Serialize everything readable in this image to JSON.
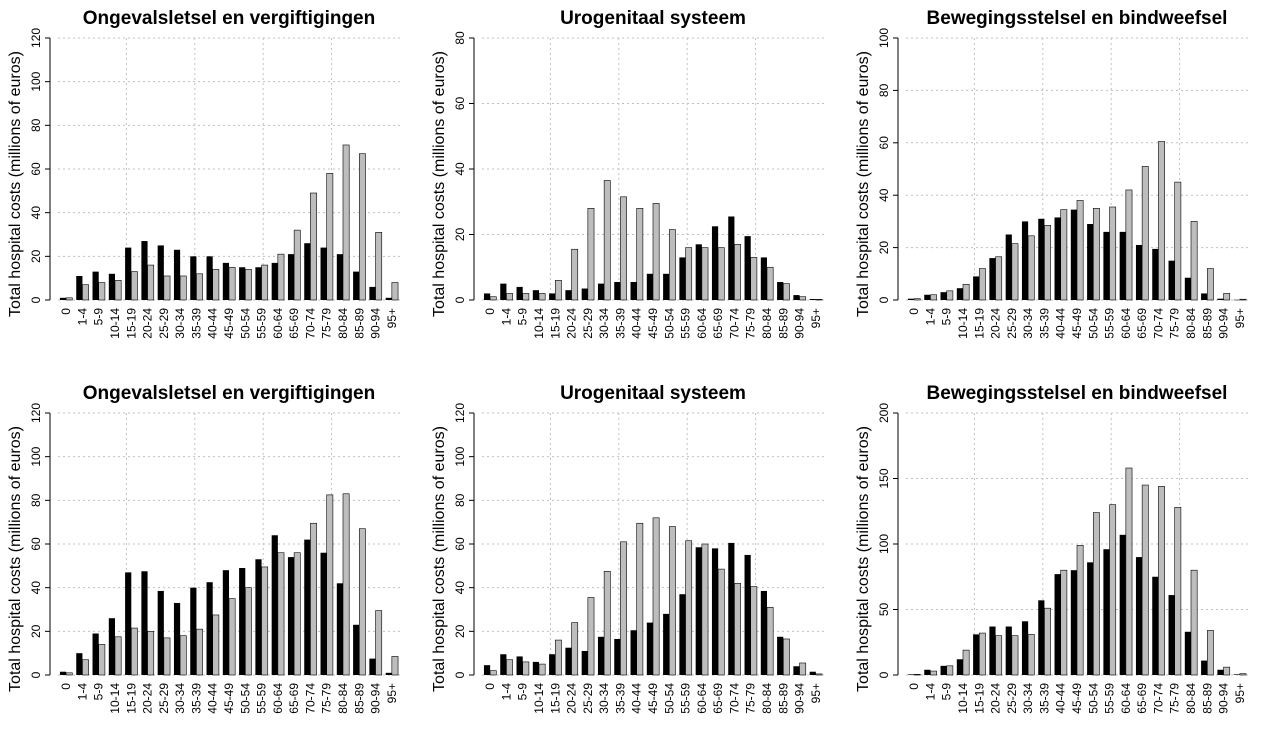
{
  "figure": {
    "ylabel": "Total hospital costs (millions of euros)",
    "series_colors": {
      "black": "#000000",
      "grey": "#bdbdbd"
    }
  },
  "chart_data": [
    {
      "type": "bar",
      "title": "Ongevalsletsel en vergiftigingen",
      "ylabel": "Total hospital costs (millions of euros)",
      "ylim": [
        0,
        120
      ],
      "yticks": [
        0,
        20,
        40,
        60,
        80,
        100,
        120
      ],
      "grid": true,
      "categories": [
        "0",
        "1-4",
        "5-9",
        "10-14",
        "15-19",
        "20-24",
        "25-29",
        "30-34",
        "35-39",
        "40-44",
        "45-49",
        "50-54",
        "55-59",
        "60-64",
        "65-69",
        "70-74",
        "75-79",
        "80-84",
        "85-89",
        "90-94",
        "95+"
      ],
      "series": [
        {
          "color": "#000000",
          "values": [
            1,
            11,
            13,
            12,
            24,
            27,
            25,
            23,
            20,
            20,
            17,
            15,
            15,
            17,
            21,
            26,
            24,
            21,
            13,
            6,
            1
          ]
        },
        {
          "color": "#bdbdbd",
          "values": [
            1,
            7,
            8,
            9,
            13,
            16,
            11,
            11,
            12,
            14,
            15,
            14,
            16,
            21,
            32,
            49,
            58,
            71,
            67,
            31,
            8
          ]
        }
      ]
    },
    {
      "type": "bar",
      "title": "Urogenitaal systeem",
      "ylabel": "Total hospital costs (millions of euros)",
      "ylim": [
        0,
        80
      ],
      "yticks": [
        0,
        20,
        40,
        60,
        80
      ],
      "grid": true,
      "categories": [
        "0",
        "1-4",
        "5-9",
        "10-14",
        "15-19",
        "20-24",
        "25-29",
        "30-34",
        "35-39",
        "40-44",
        "45-49",
        "50-54",
        "55-59",
        "60-64",
        "65-69",
        "70-74",
        "75-79",
        "80-84",
        "85-89",
        "90-94",
        "95+"
      ],
      "series": [
        {
          "color": "#000000",
          "values": [
            2,
            5,
            4,
            3,
            2,
            3,
            3.5,
            5,
            5.5,
            5.5,
            8,
            8,
            13,
            17,
            22.5,
            25.5,
            19.5,
            13,
            5.5,
            1.5,
            0.3
          ]
        },
        {
          "color": "#bdbdbd",
          "values": [
            1,
            2,
            2,
            2,
            6,
            15.5,
            28,
            36.5,
            31.5,
            28,
            29.5,
            21.5,
            16,
            16,
            16,
            17,
            13,
            10,
            5,
            1,
            0.2
          ]
        }
      ]
    },
    {
      "type": "bar",
      "title": "Bewegingsstelsel en bindweefsel",
      "ylabel": "Total hospital costs (millions of euros)",
      "ylim": [
        0,
        100
      ],
      "yticks": [
        0,
        20,
        40,
        60,
        80,
        100
      ],
      "grid": true,
      "categories": [
        "0",
        "1-4",
        "5-9",
        "10-14",
        "15-19",
        "20-24",
        "25-29",
        "30-34",
        "35-39",
        "40-44",
        "45-49",
        "50-54",
        "55-59",
        "60-64",
        "65-69",
        "70-74",
        "75-79",
        "80-84",
        "85-89",
        "90-94",
        "95+"
      ],
      "series": [
        {
          "color": "#000000",
          "values": [
            0.5,
            2,
            3,
            4.5,
            9,
            16,
            25,
            30,
            31,
            31.5,
            34.5,
            29,
            26,
            26,
            21,
            19.5,
            15,
            8.5,
            2.5,
            0.5,
            0.1
          ]
        },
        {
          "color": "#bdbdbd",
          "values": [
            0.5,
            2,
            3.5,
            6,
            12,
            16.5,
            21.5,
            24.5,
            28.5,
            34.5,
            38,
            35,
            35.5,
            42,
            51,
            60.5,
            45,
            30,
            12,
            2.5,
            0.3
          ]
        }
      ]
    },
    {
      "type": "bar",
      "title": "Ongevalsletsel en vergiftigingen",
      "ylabel": "Total hospital costs (millions of euros)",
      "ylim": [
        0,
        120
      ],
      "yticks": [
        0,
        20,
        40,
        60,
        80,
        100,
        120
      ],
      "grid": true,
      "categories": [
        "0",
        "1-4",
        "5-9",
        "10-14",
        "15-19",
        "20-24",
        "25-29",
        "30-34",
        "35-39",
        "40-44",
        "45-49",
        "50-54",
        "55-59",
        "60-64",
        "65-69",
        "70-74",
        "75-79",
        "80-84",
        "85-89",
        "90-94",
        "95+"
      ],
      "series": [
        {
          "color": "#000000",
          "values": [
            1.5,
            10,
            19,
            26,
            47,
            47.5,
            38.5,
            33,
            40,
            42.5,
            48,
            49,
            53,
            64,
            54,
            62,
            56,
            42,
            23,
            7.5,
            1
          ]
        },
        {
          "color": "#bdbdbd",
          "values": [
            1,
            7,
            14,
            17.5,
            21.5,
            20,
            17,
            18,
            21,
            27.5,
            35,
            40,
            49.5,
            56,
            56,
            69.5,
            82.5,
            83,
            67,
            29.5,
            8.5
          ]
        }
      ]
    },
    {
      "type": "bar",
      "title": "Urogenitaal systeem",
      "ylabel": "Total hospital costs (millions of euros)",
      "ylim": [
        0,
        120
      ],
      "yticks": [
        0,
        20,
        40,
        60,
        80,
        100,
        120
      ],
      "grid": true,
      "categories": [
        "0",
        "1-4",
        "5-9",
        "10-14",
        "15-19",
        "20-24",
        "25-29",
        "30-34",
        "35-39",
        "40-44",
        "45-49",
        "50-54",
        "55-59",
        "60-64",
        "65-69",
        "70-74",
        "75-79",
        "80-84",
        "85-89",
        "90-94",
        "95+"
      ],
      "series": [
        {
          "color": "#000000",
          "values": [
            4.5,
            9.5,
            8.5,
            6,
            9.5,
            12.5,
            11,
            17.5,
            16.5,
            20.5,
            24,
            28,
            37,
            58.5,
            58,
            60.5,
            55,
            38.5,
            17.5,
            4,
            1.5
          ]
        },
        {
          "color": "#bdbdbd",
          "values": [
            2,
            7,
            6,
            5,
            16,
            24,
            35.5,
            47.5,
            61,
            69.5,
            72,
            68,
            61.5,
            60,
            48.5,
            42,
            40.5,
            31,
            16.5,
            5.5,
            0.5
          ]
        }
      ]
    },
    {
      "type": "bar",
      "title": "Bewegingsstelsel en bindweefsel",
      "ylabel": "Total hospital costs (millions of euros)",
      "ylim": [
        0,
        200
      ],
      "yticks": [
        0,
        50,
        100,
        150,
        200
      ],
      "grid": true,
      "categories": [
        "0",
        "1-4",
        "5-9",
        "10-14",
        "15-19",
        "20-24",
        "25-29",
        "30-34",
        "35-39",
        "40-44",
        "45-49",
        "50-54",
        "55-59",
        "60-64",
        "65-69",
        "70-74",
        "75-79",
        "80-84",
        "85-89",
        "90-94",
        "95+"
      ],
      "series": [
        {
          "color": "#000000",
          "values": [
            0.5,
            4,
            7,
            12,
            31,
            37,
            37,
            41,
            57,
            77,
            80,
            86,
            96,
            107,
            90,
            75,
            61,
            33,
            11,
            4,
            0.5
          ]
        },
        {
          "color": "#bdbdbd",
          "values": [
            0.5,
            3,
            7,
            19,
            32,
            30,
            30,
            31,
            51,
            80,
            99,
            124,
            130,
            158,
            145,
            144,
            128,
            80,
            34,
            6,
            1
          ]
        }
      ]
    }
  ]
}
